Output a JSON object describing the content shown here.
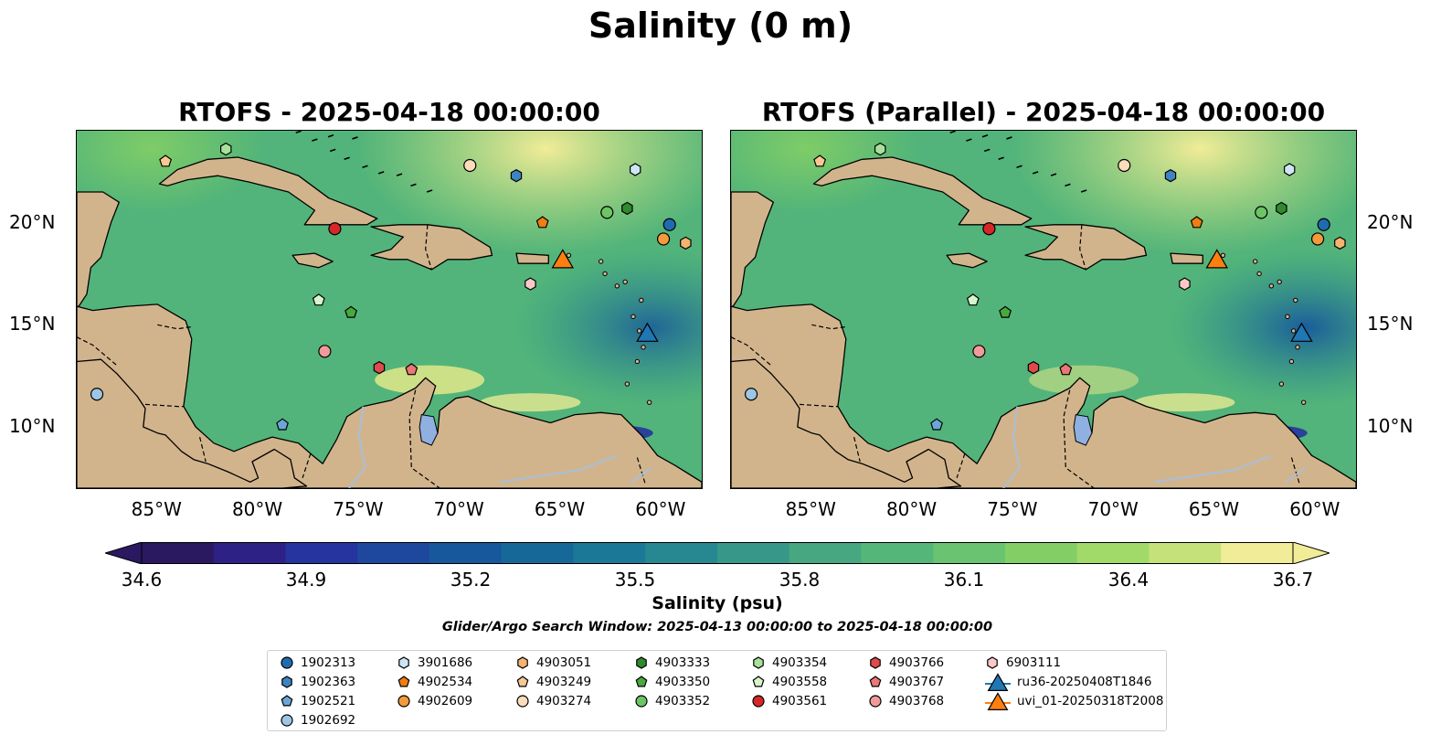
{
  "figure": {
    "title": "Salinity (0 m)",
    "left_panel_title": "RTOFS - 2025-04-18 00:00:00",
    "right_panel_title": "RTOFS (Parallel) - 2025-04-18 00:00:00",
    "lon_ticks": [
      "85°W",
      "80°W",
      "75°W",
      "70°W",
      "65°W",
      "60°W"
    ],
    "lat_ticks": [
      "20°N",
      "15°N",
      "10°N"
    ],
    "map_extent": {
      "lon": [
        -89,
        -58
      ],
      "lat": [
        7,
        24.5
      ]
    },
    "colorbar": {
      "label": "Salinity (psu)",
      "ticks": [
        "34.6",
        "34.9",
        "35.2",
        "35.5",
        "35.8",
        "36.1",
        "36.4",
        "36.7"
      ],
      "min": 34.6,
      "max": 36.7,
      "extend": "both",
      "colormap": "haline",
      "colors": [
        "#2a1860",
        "#2d2185",
        "#25349e",
        "#1e479e",
        "#17589c",
        "#166899",
        "#1b7896",
        "#288891",
        "#37988a",
        "#46a781",
        "#55b67a",
        "#69c370",
        "#83cf65",
        "#a2da6a",
        "#c5e27a",
        "#f1ec98"
      ]
    },
    "search_window": "Glider/Argo Search Window: 2025-04-13 00:00:00 to 2025-04-18 00:00:00",
    "colors": {
      "land": "#d2b48c",
      "deep_ocean_pacific": "#28195f",
      "rivers": "#a9bfd6"
    }
  },
  "legend": [
    {
      "label": "1902313",
      "marker": "circle",
      "color": "#1f6bb0"
    },
    {
      "label": "1902363",
      "marker": "hexagon",
      "color": "#3f84c2"
    },
    {
      "label": "1902521",
      "marker": "pentagon",
      "color": "#6aa7d8"
    },
    {
      "label": "1902692",
      "marker": "circle",
      "color": "#9dc6e6"
    },
    {
      "label": "3901686",
      "marker": "hexagon",
      "color": "#cde6f5"
    },
    {
      "label": "4902534",
      "marker": "pentagon",
      "color": "#f07d10"
    },
    {
      "label": "4902609",
      "marker": "circle",
      "color": "#f39a3c"
    },
    {
      "label": "4903051",
      "marker": "hexagon",
      "color": "#f6b26f"
    },
    {
      "label": "4903249",
      "marker": "pentagon",
      "color": "#f8c894"
    },
    {
      "label": "4903274",
      "marker": "circle",
      "color": "#fbdcbb"
    },
    {
      "label": "4903333",
      "marker": "hexagon",
      "color": "#2f8a2f"
    },
    {
      "label": "4903350",
      "marker": "pentagon",
      "color": "#48a93e"
    },
    {
      "label": "4903352",
      "marker": "circle",
      "color": "#6cc463"
    },
    {
      "label": "4903354",
      "marker": "hexagon",
      "color": "#a7e19a"
    },
    {
      "label": "4903558",
      "marker": "pentagon",
      "color": "#d7f4cd"
    },
    {
      "label": "4903561",
      "marker": "circle",
      "color": "#d62728"
    },
    {
      "label": "4903766",
      "marker": "hexagon",
      "color": "#e04a4b"
    },
    {
      "label": "4903767",
      "marker": "pentagon",
      "color": "#eb7778"
    },
    {
      "label": "4903768",
      "marker": "circle",
      "color": "#f29a9a"
    },
    {
      "label": "6903111",
      "marker": "hexagon",
      "color": "#f9c8c8"
    },
    {
      "label": "ru36-20250408T1846",
      "marker": "triangle",
      "color": "#1f77b4"
    },
    {
      "label": "uvi_01-20250318T2008",
      "marker": "triangle",
      "color": "#ff7f0e"
    }
  ],
  "floats": [
    {
      "id": "1902313",
      "lon": -59.6,
      "lat": 19.9
    },
    {
      "id": "1902363",
      "lon": -67.2,
      "lat": 22.3
    },
    {
      "id": "1902521",
      "lon": -78.8,
      "lat": 10.1
    },
    {
      "id": "1902692",
      "lon": -88.0,
      "lat": 11.6
    },
    {
      "id": "3901686",
      "lon": -61.3,
      "lat": 22.6
    },
    {
      "id": "4902534",
      "lon": -65.9,
      "lat": 20.0
    },
    {
      "id": "4902609",
      "lon": -59.9,
      "lat": 19.2
    },
    {
      "id": "4903051",
      "lon": -58.8,
      "lat": 19.0
    },
    {
      "id": "4903249",
      "lon": -84.6,
      "lat": 23.0
    },
    {
      "id": "4903274",
      "lon": -69.5,
      "lat": 22.8
    },
    {
      "id": "4903333",
      "lon": -61.7,
      "lat": 20.7
    },
    {
      "id": "4903350",
      "lon": -75.4,
      "lat": 15.6
    },
    {
      "id": "4903352",
      "lon": -62.7,
      "lat": 20.5
    },
    {
      "id": "4903354",
      "lon": -81.6,
      "lat": 23.6
    },
    {
      "id": "4903558",
      "lon": -77.0,
      "lat": 16.2
    },
    {
      "id": "4903561",
      "lon": -76.2,
      "lat": 19.7
    },
    {
      "id": "4903766",
      "lon": -74.0,
      "lat": 12.9
    },
    {
      "id": "4903767",
      "lon": -72.4,
      "lat": 12.8
    },
    {
      "id": "4903768",
      "lon": -76.7,
      "lat": 13.7
    },
    {
      "id": "6903111",
      "lon": -66.5,
      "lat": 17.0
    },
    {
      "id": "ru36-20250408T1846",
      "lon": -60.7,
      "lat": 14.6
    },
    {
      "id": "uvi_01-20250318T2008",
      "lon": -64.9,
      "lat": 18.2
    }
  ]
}
